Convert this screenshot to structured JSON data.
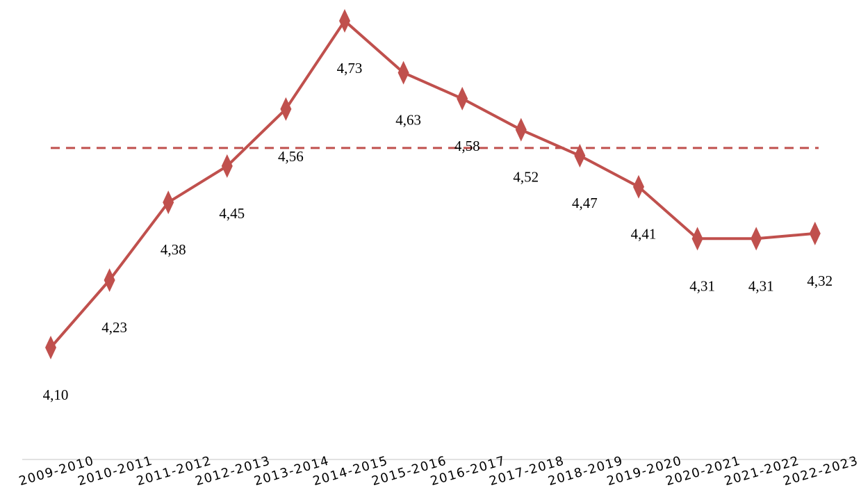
{
  "chart_data": {
    "type": "line",
    "categories": [
      "2009-2010",
      "2010-2011",
      "2011-2012",
      "2012-2013",
      "2013-2014",
      "2014-2015",
      "2015-2016",
      "2016-2017",
      "2017-2018",
      "2018-2019",
      "2019-2020",
      "2020-2021",
      "2021-2022",
      "2022-2023"
    ],
    "series": [
      {
        "values": [
          4.1,
          4.23,
          4.38,
          4.45,
          4.56,
          4.73,
          4.63,
          4.58,
          4.52,
          4.47,
          4.41,
          4.31,
          4.31,
          4.32
        ],
        "labels": [
          "4,10",
          "4,23",
          "4,38",
          "4,45",
          "4,56",
          "4,73",
          "4,63",
          "4,58",
          "4,52",
          "4,47",
          "4,41",
          "4,31",
          "4,31",
          "4,32"
        ],
        "color": "#c0504d",
        "marker": "diamond"
      }
    ],
    "average_line": {
      "value": 4.45,
      "style": "dashed",
      "color": "#c0504d"
    },
    "title": "",
    "xlabel": "",
    "ylabel": "",
    "ylim": [
      3.9,
      4.75
    ],
    "grid": false,
    "legend": "none",
    "colors": {
      "axis": "#d9d9d9",
      "text": "#000000"
    }
  }
}
